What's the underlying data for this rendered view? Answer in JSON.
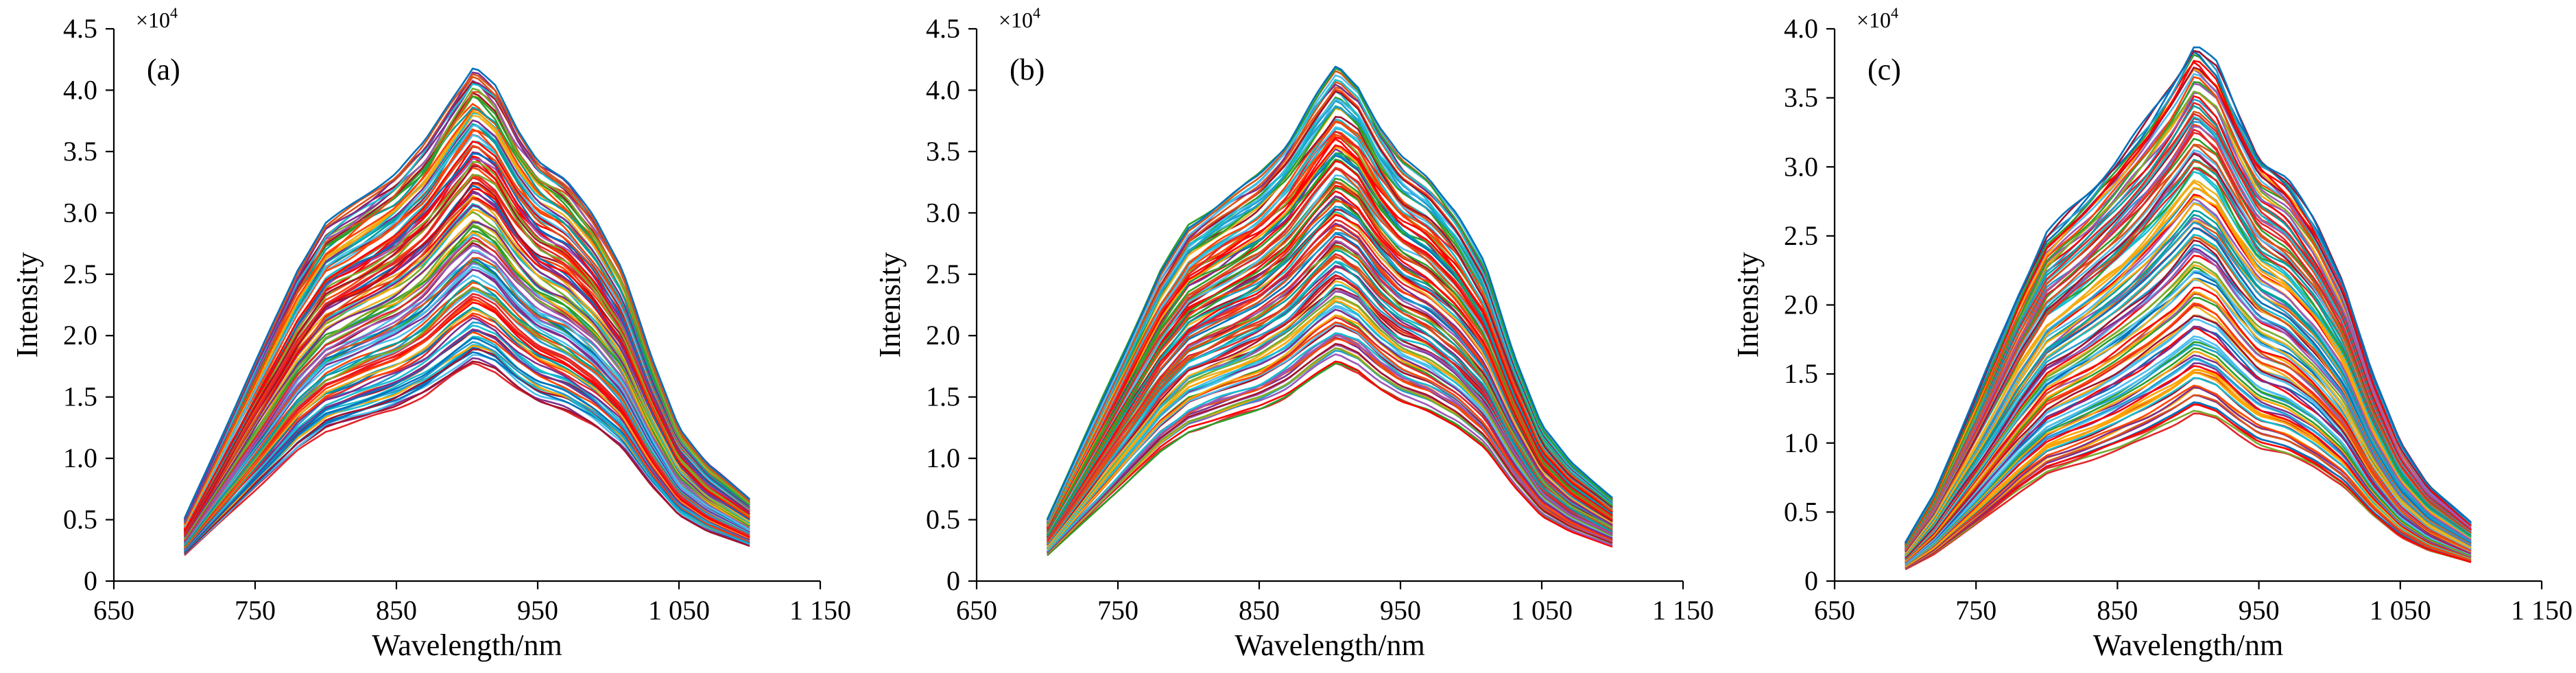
{
  "chart_data": [
    {
      "type": "line",
      "panel_label": "(a)",
      "xlabel": "Wavelength/nm",
      "ylabel": "Intensity",
      "y_multiplier": "×10",
      "y_multiplier_exp": "4",
      "xlim": [
        650,
        1150
      ],
      "ylim": [
        0,
        4.5
      ],
      "x_ticks": [
        650,
        750,
        850,
        950,
        1050,
        1150
      ],
      "x_tick_labels": [
        "650",
        "750",
        "850",
        "950",
        "1 050",
        "1 150"
      ],
      "y_ticks": [
        0,
        0.5,
        1.0,
        1.5,
        2.0,
        2.5,
        3.0,
        3.5,
        4.0,
        4.5
      ],
      "y_tick_labels": [
        "0",
        "0.5",
        "1.0",
        "1.5",
        "2.0",
        "2.5",
        "3.0",
        "3.5",
        "4.0",
        "4.5"
      ],
      "spectra_range_nm": [
        700,
        1100
      ],
      "num_spectra": 120,
      "peak_wavelength_nm": 905,
      "peak_min": 1.78,
      "peak_max": 4.2,
      "shape": [
        [
          700,
          0.12
        ],
        [
          720,
          0.24
        ],
        [
          750,
          0.42
        ],
        [
          780,
          0.6
        ],
        [
          800,
          0.69
        ],
        [
          830,
          0.75
        ],
        [
          850,
          0.79
        ],
        [
          870,
          0.85
        ],
        [
          890,
          0.94
        ],
        [
          905,
          1.0
        ],
        [
          920,
          0.96
        ],
        [
          935,
          0.88
        ],
        [
          950,
          0.82
        ],
        [
          970,
          0.78
        ],
        [
          990,
          0.71
        ],
        [
          1010,
          0.61
        ],
        [
          1030,
          0.44
        ],
        [
          1050,
          0.3
        ],
        [
          1070,
          0.23
        ],
        [
          1100,
          0.16
        ]
      ]
    },
    {
      "type": "line",
      "panel_label": "(b)",
      "xlabel": "Wavelength/nm",
      "ylabel": "Intensity",
      "y_multiplier": "×10",
      "y_multiplier_exp": "4",
      "xlim": [
        650,
        1150
      ],
      "ylim": [
        0,
        4.5
      ],
      "x_ticks": [
        650,
        750,
        850,
        950,
        1050,
        1150
      ],
      "x_tick_labels": [
        "650",
        "750",
        "850",
        "950",
        "1 050",
        "1 150"
      ],
      "y_ticks": [
        0,
        0.5,
        1.0,
        1.5,
        2.0,
        2.5,
        3.0,
        3.5,
        4.0,
        4.5
      ],
      "y_tick_labels": [
        "0",
        "0.5",
        "1.0",
        "1.5",
        "2.0",
        "2.5",
        "3.0",
        "3.5",
        "4.0",
        "4.5"
      ],
      "spectra_range_nm": [
        700,
        1100
      ],
      "num_spectra": 120,
      "peak_wavelength_nm": 905,
      "peak_min": 1.78,
      "peak_max": 4.2,
      "shape": [
        [
          700,
          0.12
        ],
        [
          720,
          0.24
        ],
        [
          750,
          0.42
        ],
        [
          780,
          0.6
        ],
        [
          800,
          0.69
        ],
        [
          830,
          0.75
        ],
        [
          850,
          0.79
        ],
        [
          870,
          0.85
        ],
        [
          890,
          0.94
        ],
        [
          905,
          1.0
        ],
        [
          920,
          0.96
        ],
        [
          935,
          0.88
        ],
        [
          950,
          0.82
        ],
        [
          970,
          0.78
        ],
        [
          990,
          0.71
        ],
        [
          1010,
          0.61
        ],
        [
          1030,
          0.44
        ],
        [
          1050,
          0.3
        ],
        [
          1070,
          0.23
        ],
        [
          1100,
          0.16
        ]
      ]
    },
    {
      "type": "line",
      "panel_label": "(c)",
      "xlabel": "Wavelength/nm",
      "ylabel": "Intensity",
      "y_multiplier": "×10",
      "y_multiplier_exp": "4",
      "xlim": [
        650,
        1150
      ],
      "ylim": [
        0,
        4.0
      ],
      "x_ticks": [
        650,
        750,
        850,
        950,
        1050,
        1150
      ],
      "x_tick_labels": [
        "650",
        "750",
        "850",
        "950",
        "1 050",
        "1 150"
      ],
      "y_ticks": [
        0,
        0.5,
        1.0,
        1.5,
        2.0,
        2.5,
        3.0,
        3.5,
        4.0
      ],
      "y_tick_labels": [
        "0",
        "0.5",
        "1.0",
        "1.5",
        "2.0",
        "2.5",
        "3.0",
        "3.5",
        "4.0"
      ],
      "spectra_range_nm": [
        700,
        1100
      ],
      "num_spectra": 120,
      "peak_wavelength_nm": 905,
      "peak_min": 1.22,
      "peak_max": 3.9,
      "shape": [
        [
          700,
          0.07
        ],
        [
          720,
          0.16
        ],
        [
          750,
          0.34
        ],
        [
          780,
          0.53
        ],
        [
          800,
          0.64
        ],
        [
          830,
          0.72
        ],
        [
          850,
          0.78
        ],
        [
          870,
          0.85
        ],
        [
          890,
          0.93
        ],
        [
          905,
          1.0
        ],
        [
          920,
          0.96
        ],
        [
          935,
          0.87
        ],
        [
          950,
          0.79
        ],
        [
          970,
          0.75
        ],
        [
          990,
          0.67
        ],
        [
          1010,
          0.56
        ],
        [
          1030,
          0.39
        ],
        [
          1050,
          0.26
        ],
        [
          1070,
          0.18
        ],
        [
          1100,
          0.11
        ]
      ]
    }
  ],
  "colors": [
    "#ff0000",
    "#0072bd",
    "#d95319",
    "#edb120",
    "#7e2f8e",
    "#77ac30",
    "#4dbeee",
    "#a2142f",
    "#1f9ed1",
    "#e3262a",
    "#ffa500",
    "#00a0a0",
    "#9b59b6",
    "#2ca02c",
    "#17becf",
    "#ff4500"
  ]
}
